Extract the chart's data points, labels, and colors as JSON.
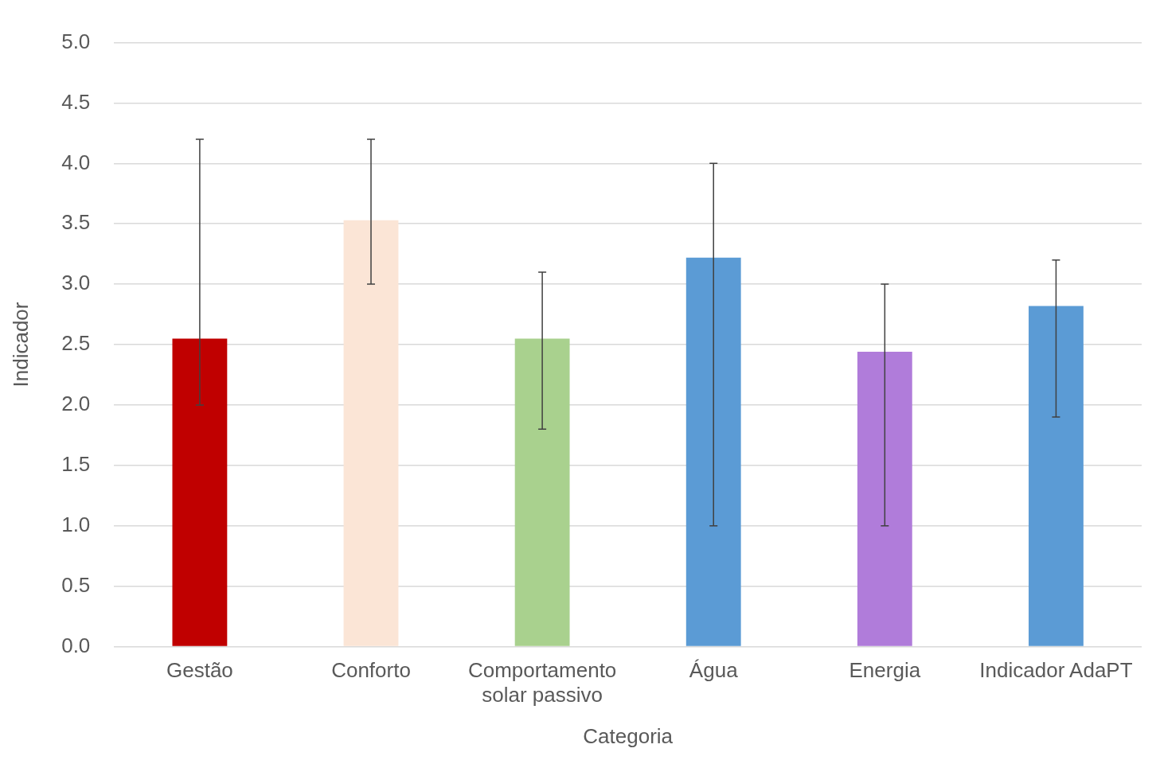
{
  "chart_data": {
    "type": "bar",
    "xlabel": "Categoria",
    "ylabel": "Indicador",
    "categories": [
      "Gestão",
      "Conforto",
      "Comportamento solar passivo",
      "Água",
      "Energia",
      "Indicador AdaPT"
    ],
    "values": [
      2.55,
      3.53,
      2.55,
      3.22,
      2.44,
      2.82
    ],
    "colors": [
      "#c00000",
      "#fbe5d6",
      "#a9d18e",
      "#5b9bd5",
      "#b07cda",
      "#5b9bd5"
    ],
    "errors": [
      [
        2.0,
        4.2
      ],
      [
        3.0,
        4.2
      ],
      [
        1.8,
        3.1
      ],
      [
        1.0,
        4.0
      ],
      [
        1.0,
        3.0
      ],
      [
        1.9,
        3.2
      ]
    ],
    "ylim": [
      0,
      5
    ],
    "yticks": [
      {
        "value": 0,
        "label": "0.0"
      },
      {
        "value": 0.5,
        "label": "0.5"
      },
      {
        "value": 1,
        "label": "1.0"
      },
      {
        "value": 1.5,
        "label": "1.5"
      },
      {
        "value": 2,
        "label": "2.0"
      },
      {
        "value": 2.5,
        "label": "2.5"
      },
      {
        "value": 3,
        "label": "3.0"
      },
      {
        "value": 3.5,
        "label": "3.5"
      },
      {
        "value": 4,
        "label": "4.0"
      },
      {
        "value": 4.5,
        "label": "4.5"
      },
      {
        "value": 5,
        "label": "5.0"
      }
    ],
    "grid": "y",
    "legend": false
  }
}
